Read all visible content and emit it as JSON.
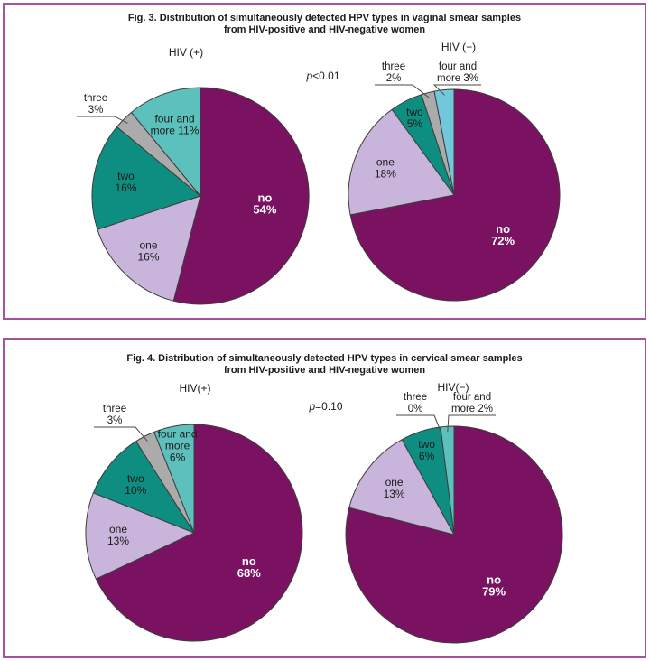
{
  "page": {
    "background": "#ffffff",
    "panel_border_color": "#a4549c",
    "slice_outline_color": "#3d3d3d",
    "callout_line_color": "#4a4a4a"
  },
  "chart_data": [
    {
      "type": "pie",
      "title_line1": "Fig. 3. Distribution of simultaneously detected HPV types in vaginal smear samples",
      "title_line2": "from HIV-positive and HIV-negative women",
      "p_label": {
        "prefix": "p",
        "rest": "<0.01"
      },
      "pies": [
        {
          "group_label": "HIV (+)",
          "slices": [
            {
              "name": "no",
              "value": 54,
              "color": "#7b1161",
              "label_lines": [
                "no",
                "54%"
              ],
              "placement": "inside",
              "emphasis": true
            },
            {
              "name": "one",
              "value": 16,
              "color": "#c9b5db",
              "label_lines": [
                "one",
                "16%"
              ],
              "placement": "inside"
            },
            {
              "name": "two",
              "value": 16,
              "color": "#0e8e80",
              "label_lines": [
                "two",
                "16%"
              ],
              "placement": "inside"
            },
            {
              "name": "three",
              "value": 3,
              "color": "#ababab",
              "label_lines": [
                "three",
                "3%"
              ],
              "placement": "callout"
            },
            {
              "name": "four and more",
              "value": 11,
              "color": "#5cc1bd",
              "label_lines": [
                "four and",
                "more 11%"
              ],
              "placement": "inside"
            }
          ]
        },
        {
          "group_label": "HIV (−)",
          "slices": [
            {
              "name": "no",
              "value": 72,
              "color": "#7b1161",
              "label_lines": [
                "no",
                "72%"
              ],
              "placement": "inside",
              "emphasis": true
            },
            {
              "name": "one",
              "value": 18,
              "color": "#c9b5db",
              "label_lines": [
                "one",
                "18%"
              ],
              "placement": "inside"
            },
            {
              "name": "two",
              "value": 5,
              "color": "#0e8e80",
              "label_lines": [
                "two",
                "5%"
              ],
              "placement": "inside"
            },
            {
              "name": "three",
              "value": 2,
              "color": "#ababab",
              "label_lines": [
                "three",
                "2%"
              ],
              "placement": "callout"
            },
            {
              "name": "four and more",
              "value": 3,
              "color": "#72c7dc",
              "label_lines": [
                "four and",
                "more 3%"
              ],
              "placement": "callout"
            }
          ]
        }
      ]
    },
    {
      "type": "pie",
      "title_line1": "Fig. 4. Distribution of simultaneously detected HPV types in cervical smear samples",
      "title_line2": "from HIV-positive and HIV-negative women",
      "p_label": {
        "prefix": "p",
        "rest": "=0.10"
      },
      "pies": [
        {
          "group_label": "HIV(+)",
          "slices": [
            {
              "name": "no",
              "value": 68,
              "color": "#7b1161",
              "label_lines": [
                "no",
                "68%"
              ],
              "placement": "inside",
              "emphasis": true
            },
            {
              "name": "one",
              "value": 13,
              "color": "#c9b5db",
              "label_lines": [
                "one",
                "13%"
              ],
              "placement": "inside"
            },
            {
              "name": "two",
              "value": 10,
              "color": "#0e8e80",
              "label_lines": [
                "two",
                "10%"
              ],
              "placement": "inside"
            },
            {
              "name": "three",
              "value": 3,
              "color": "#ababab",
              "label_lines": [
                "three",
                "3%"
              ],
              "placement": "callout"
            },
            {
              "name": "four and more",
              "value": 6,
              "color": "#5cc1bd",
              "label_lines": [
                "four and",
                "more",
                "6%"
              ],
              "placement": "inside"
            }
          ]
        },
        {
          "group_label": "HIV(−)",
          "slices": [
            {
              "name": "no",
              "value": 79,
              "color": "#7b1161",
              "label_lines": [
                "no",
                "79%"
              ],
              "placement": "inside",
              "emphasis": true
            },
            {
              "name": "one",
              "value": 13,
              "color": "#c9b5db",
              "label_lines": [
                "one",
                "13%"
              ],
              "placement": "inside"
            },
            {
              "name": "two",
              "value": 6,
              "color": "#0e8e80",
              "label_lines": [
                "two",
                "6%"
              ],
              "placement": "inside"
            },
            {
              "name": "three",
              "value": 0,
              "color": "#ababab",
              "label_lines": [
                "three",
                "0%"
              ],
              "placement": "callout"
            },
            {
              "name": "four and more",
              "value": 2,
              "color": "#5cc1bd",
              "label_lines": [
                "four and",
                "more 2%"
              ],
              "placement": "callout"
            }
          ]
        }
      ]
    }
  ]
}
